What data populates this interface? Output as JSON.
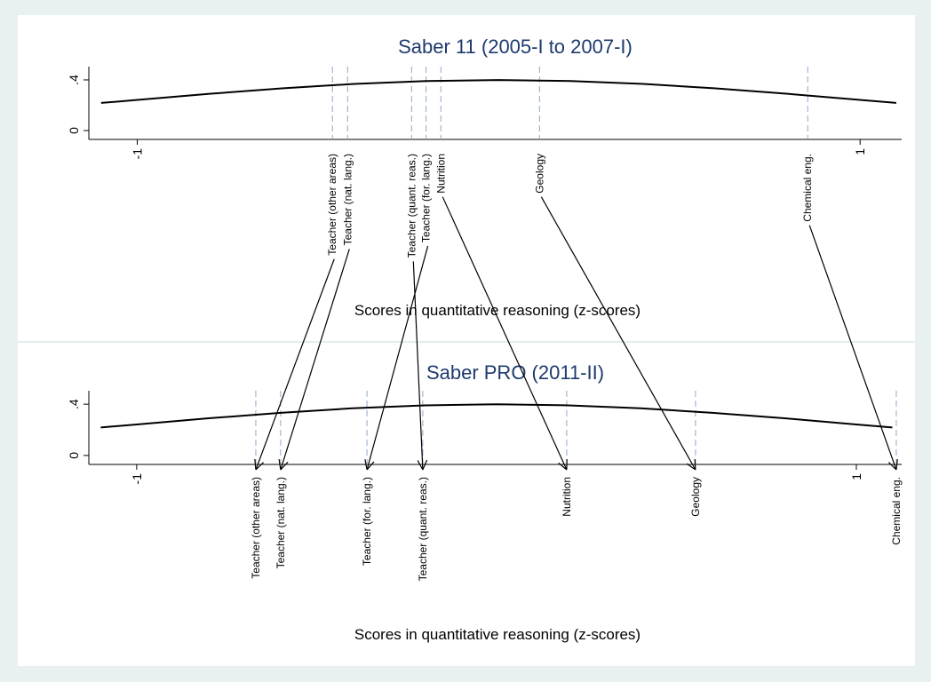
{
  "chart_data": [
    {
      "type": "density",
      "title": "Saber 11 (2005-I to 2007-I)",
      "x_label": "Scores in quantitative reasoning (z-scores)",
      "xlim": [
        -1.134,
        1.115
      ],
      "xticks": [
        -1,
        1
      ],
      "ylim": [
        -0.07,
        0.505
      ],
      "yticks": [
        0,
        {
          "value": 0.4,
          "label": ".4"
        }
      ],
      "curve": {
        "x": [
          -1.1,
          -1.0,
          -0.8,
          -0.6,
          -0.4,
          -0.2,
          0,
          0.2,
          0.4,
          0.6,
          0.8,
          1.0,
          1.1
        ],
        "values": [
          0.218,
          0.242,
          0.29,
          0.333,
          0.368,
          0.391,
          0.399,
          0.391,
          0.368,
          0.333,
          0.29,
          0.242,
          0.218
        ]
      },
      "categories": [
        "Teacher (other areas)",
        "Teacher (nat. lang.)",
        "Teacher (quant. reas.)",
        "Teacher (for. lang.)",
        "Nutrition",
        "Geology",
        "Chemical eng."
      ],
      "values": [
        -0.46,
        -0.418,
        -0.241,
        -0.201,
        -0.16,
        0.113,
        0.855
      ]
    },
    {
      "type": "density",
      "title": "Saber PRO (2011-II)",
      "x_label": "Scores in quantitative reasoning (z-scores)",
      "xlim": [
        -1.133,
        1.126
      ],
      "xticks": [
        -1,
        1
      ],
      "ylim": [
        -0.07,
        0.505
      ],
      "yticks": [
        0,
        {
          "value": 0.4,
          "label": ".4"
        }
      ],
      "curve": {
        "x": [
          -1.1,
          -1.0,
          -0.8,
          -0.6,
          -0.4,
          -0.2,
          0,
          0.2,
          0.4,
          0.6,
          0.8,
          1.0,
          1.1
        ],
        "values": [
          0.218,
          0.242,
          0.29,
          0.333,
          0.368,
          0.391,
          0.399,
          0.391,
          0.368,
          0.333,
          0.29,
          0.242,
          0.218
        ]
      },
      "categories": [
        "Teacher (other areas)",
        "Teacher (nat. lang.)",
        "Teacher (quant. reas.)",
        "Teacher (for. lang.)",
        "Nutrition",
        "Geology",
        "Chemical eng."
      ],
      "values": [
        -0.669,
        -0.6,
        -0.205,
        -0.36,
        0.195,
        0.553,
        1.111
      ]
    }
  ]
}
